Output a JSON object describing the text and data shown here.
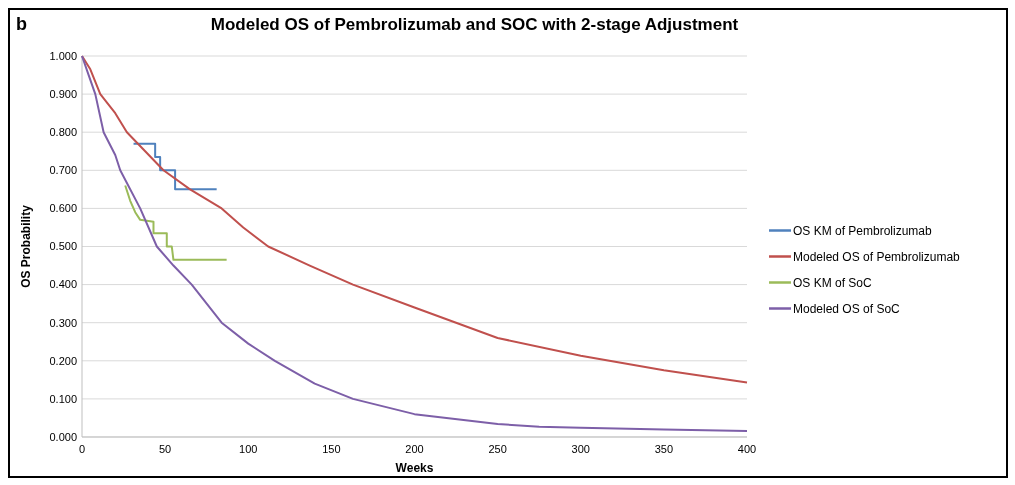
{
  "chart_data": {
    "type": "line",
    "title": "Modeled OS of Pembrolizumab and SOC with 2-stage Adjustment",
    "xlabel": "Weeks",
    "ylabel": "OS Probability",
    "annotations": [
      "b"
    ],
    "xlim": [
      0,
      400
    ],
    "xticks": [
      0,
      50,
      100,
      150,
      200,
      250,
      300,
      350,
      400
    ],
    "ylim": [
      0,
      1
    ],
    "yticks": [
      {
        "value": 0,
        "label": "0.000"
      },
      {
        "value": 0.1,
        "label": "0.100"
      },
      {
        "value": 0.2,
        "label": "0.200"
      },
      {
        "value": 0.3,
        "label": "0.300"
      },
      {
        "value": 0.4,
        "label": "0.400"
      },
      {
        "value": 0.5,
        "label": "0.500"
      },
      {
        "value": 0.6,
        "label": "0.600"
      },
      {
        "value": 0.7,
        "label": "0.700"
      },
      {
        "value": 0.8,
        "label": "0.800"
      },
      {
        "value": 0.9,
        "label": "0.900"
      },
      {
        "value": 1,
        "label": "1.000"
      }
    ],
    "grid": "y",
    "legend": "right",
    "marker": "none",
    "line_style": "solid",
    "series": [
      {
        "name": "OS KM of Pembrolizumab",
        "color": "#4f81bd",
        "x": [
          31,
          44,
          44,
          47,
          47,
          56,
          56,
          81
        ],
        "values": [
          0.77,
          0.77,
          0.735,
          0.735,
          0.7,
          0.7,
          0.65,
          0.65
        ]
      },
      {
        "name": "Modeled OS of Pembrolizumab",
        "color": "#c0504d",
        "x": [
          0,
          5,
          11,
          20,
          27,
          38,
          49,
          65,
          84,
          97,
          112,
          137,
          163,
          200,
          250,
          300,
          350,
          400
        ],
        "values": [
          1,
          0.965,
          0.9,
          0.85,
          0.8,
          0.75,
          0.7,
          0.65,
          0.6,
          0.55,
          0.5,
          0.45,
          0.4,
          0.34,
          0.26,
          0.213,
          0.175,
          0.143
        ]
      },
      {
        "name": "OS KM of SoC",
        "color": "#9bbb59",
        "x": [
          26,
          29,
          32,
          35,
          43,
          43,
          51,
          51,
          54,
          55,
          87
        ],
        "values": [
          0.66,
          0.62,
          0.59,
          0.57,
          0.565,
          0.535,
          0.535,
          0.5,
          0.5,
          0.465,
          0.465
        ]
      },
      {
        "name": "Modeled OS of SoC",
        "color": "#7d5fa8",
        "x": [
          0,
          4,
          8,
          13,
          20,
          23,
          35,
          45,
          55,
          66,
          84,
          100,
          116,
          140,
          163,
          200,
          250,
          275,
          300,
          350,
          400
        ],
        "values": [
          1,
          0.95,
          0.9,
          0.8,
          0.74,
          0.7,
          0.6,
          0.5,
          0.45,
          0.4,
          0.3,
          0.245,
          0.2,
          0.14,
          0.1,
          0.06,
          0.034,
          0.027,
          0.024,
          0.02,
          0.016
        ]
      }
    ]
  }
}
